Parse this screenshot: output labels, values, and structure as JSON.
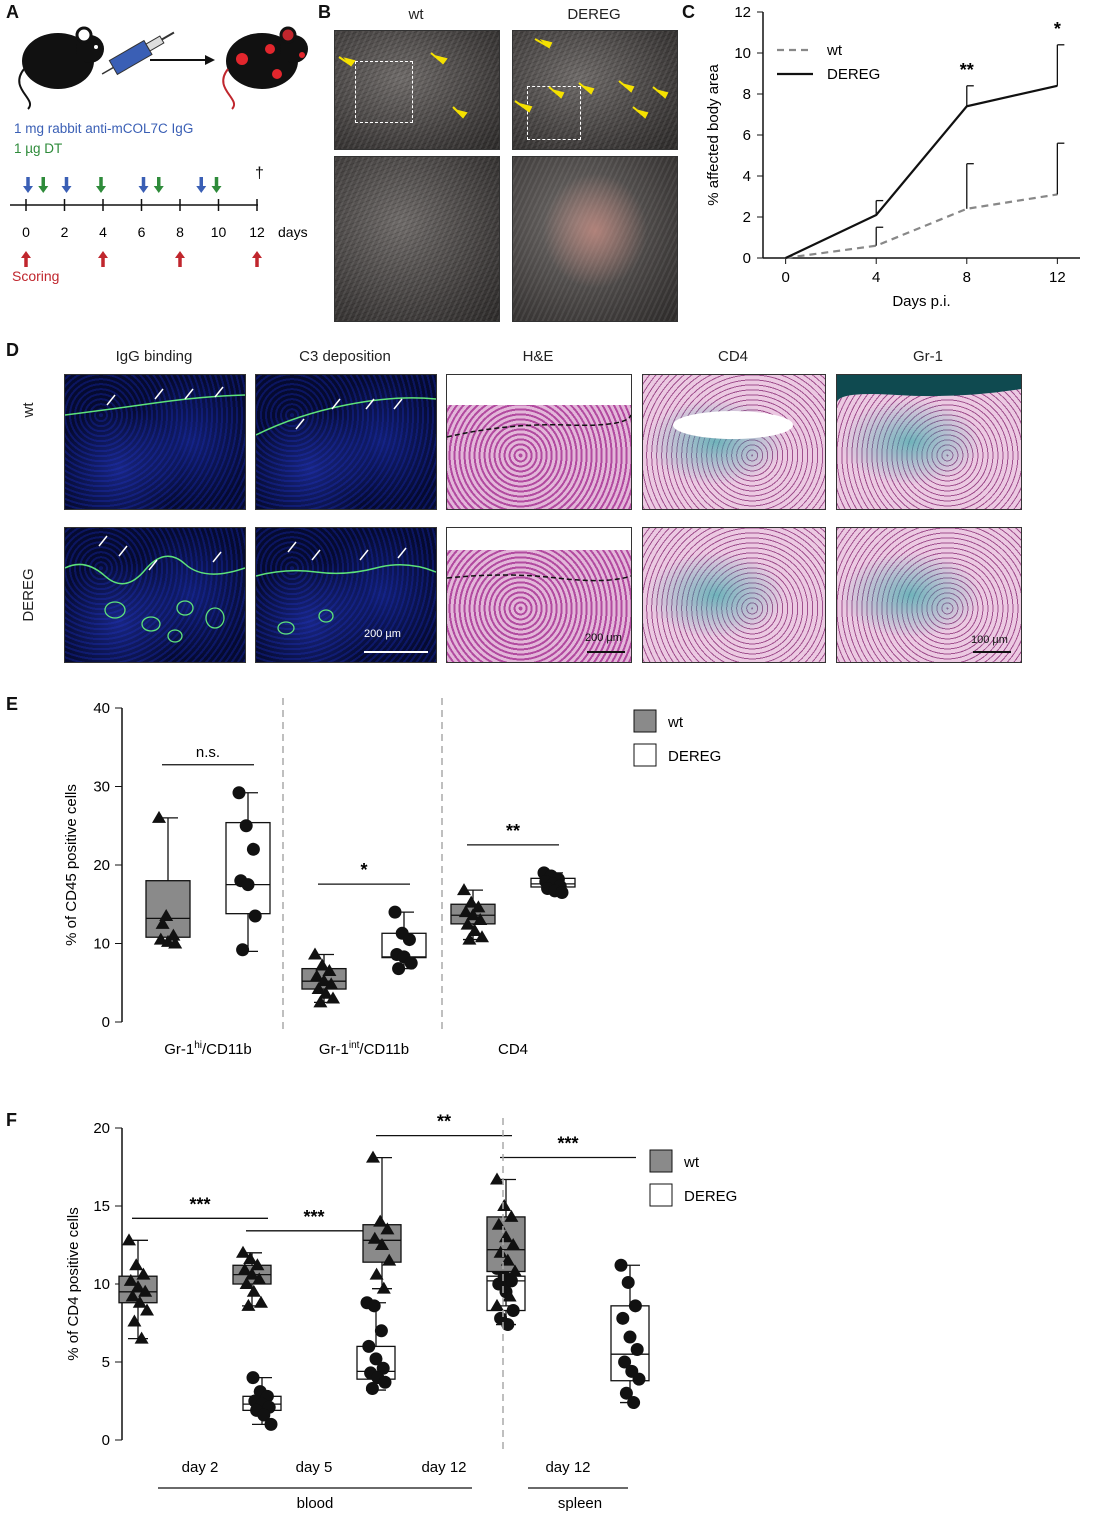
{
  "panelA": {
    "label": "A",
    "antibody_text": "1 mg rabbit anti-mCOL7C IgG",
    "dt_text": "1 µg DT",
    "dagger": "†",
    "ticks": [
      "0",
      "2",
      "4",
      "6",
      "8",
      "10",
      "12"
    ],
    "unit": "days",
    "scoring": "Scoring",
    "colors": {
      "antibody": "#3a5fb5",
      "dt": "#2e8b3a",
      "scoring": "#c0262d"
    }
  },
  "panelB": {
    "label": "B",
    "col1": "wt",
    "col2": "DEREG"
  },
  "panelD": {
    "label": "D",
    "columns": [
      "IgG binding",
      "C3 deposition",
      "H&E",
      "CD4",
      "Gr-1"
    ],
    "rows": [
      "wt",
      "DEREG"
    ],
    "scale1": "200 µm",
    "scale2": "200 µm",
    "scale3": "100 µm"
  },
  "legend": {
    "wt": "wt",
    "dereg": "DEREG"
  },
  "chart_data": [
    {
      "panel": "C",
      "type": "line",
      "xlabel": "Days p.i.",
      "ylabel": "% affected body area",
      "x": [
        0,
        4,
        8,
        12
      ],
      "xlim": [
        -1,
        13
      ],
      "ylim": [
        0,
        12
      ],
      "yticks": [
        0,
        2,
        4,
        6,
        8,
        10,
        12
      ],
      "legend_position": "top-left",
      "series": [
        {
          "name": "wt",
          "values": [
            0,
            0.6,
            2.4,
            3.1
          ],
          "err": [
            0,
            0.9,
            2.2,
            2.5
          ],
          "style": "dashed",
          "color": "#888888"
        },
        {
          "name": "DEREG",
          "values": [
            0,
            2.1,
            7.4,
            8.4
          ],
          "err": [
            0,
            0.7,
            1.0,
            2.0
          ],
          "style": "solid",
          "color": "#111111"
        }
      ],
      "annotations": [
        {
          "x": 8,
          "text": "**"
        },
        {
          "x": 12,
          "text": "*"
        }
      ]
    },
    {
      "panel": "E",
      "type": "box",
      "ylabel": "% of CD45 positive cells",
      "ylim": [
        0,
        40
      ],
      "yticks": [
        0,
        10,
        20,
        30,
        40
      ],
      "groups": [
        {
          "label": "Gr-1hi/CD11b",
          "sup": "hi",
          "base": "Gr-1",
          "rest": "/CD11b",
          "signif": "n.s.",
          "wt": {
            "min": 10,
            "q1": 10.8,
            "med": 13.2,
            "q3": 18.0,
            "max": 26,
            "points": [
              26,
              13.5,
              11,
              10.5,
              10.2,
              10.0,
              12.5
            ]
          },
          "dereg": {
            "min": 9,
            "q1": 13.8,
            "med": 17.5,
            "q3": 25.4,
            "max": 29.2,
            "points": [
              29.2,
              25,
              22,
              18,
              17.5,
              13.5,
              9.2
            ]
          }
        },
        {
          "label": "Gr-1int/CD11b",
          "sup": "int",
          "base": "Gr-1",
          "rest": "/CD11b",
          "signif": "*",
          "wt": {
            "min": 2.5,
            "q1": 4.2,
            "med": 5.2,
            "q3": 6.8,
            "max": 8.6,
            "points": [
              8.6,
              7.2,
              6.5,
              5.8,
              5.2,
              4.8,
              4.2,
              3.6,
              3.0,
              2.5
            ]
          },
          "dereg": {
            "min": 6.8,
            "q1": 8.2,
            "med": 8.3,
            "q3": 11.3,
            "max": 14.0,
            "points": [
              14.0,
              11.3,
              10.5,
              8.6,
              8.3,
              7.5,
              6.8
            ]
          }
        },
        {
          "label": "CD4",
          "sup": "",
          "base": "CD4",
          "rest": "",
          "signif": "**",
          "wt": {
            "min": 10.5,
            "q1": 12.5,
            "med": 13.6,
            "q3": 15.0,
            "max": 16.8,
            "points": [
              16.8,
              15.2,
              14.6,
              14.0,
              13.6,
              13.0,
              12.4,
              11.6,
              10.8,
              10.5
            ]
          },
          "dereg": {
            "min": 16.5,
            "q1": 17.2,
            "med": 17.6,
            "q3": 18.3,
            "max": 19.0,
            "points": [
              19.0,
              18.6,
              18.2,
              17.9,
              17.6,
              17.3,
              17.0,
              16.7,
              16.5
            ]
          }
        }
      ]
    },
    {
      "panel": "F",
      "type": "box",
      "ylabel": "% of CD4 positive cells",
      "ylim": [
        0,
        20
      ],
      "yticks": [
        0,
        5,
        10,
        15,
        20
      ],
      "groups": [
        {
          "label": "day 2",
          "signif": "***",
          "wt": {
            "min": 6.5,
            "q1": 8.8,
            "med": 9.5,
            "q3": 10.5,
            "max": 12.8,
            "points": [
              12.8,
              11.2,
              10.6,
              10.2,
              9.8,
              9.5,
              9.2,
              8.8,
              8.3,
              7.6,
              6.5
            ]
          },
          "dereg": {
            "min": 1.0,
            "q1": 1.9,
            "med": 2.3,
            "q3": 2.8,
            "max": 4.0,
            "points": [
              4.0,
              3.1,
              2.8,
              2.5,
              2.3,
              2.1,
              1.9,
              1.6,
              1.0
            ]
          }
        },
        {
          "label": "day 5",
          "signif": "***",
          "wt": {
            "min": 8.6,
            "q1": 10.0,
            "med": 10.6,
            "q3": 11.2,
            "max": 12.0,
            "points": [
              12.0,
              11.6,
              11.2,
              10.9,
              10.6,
              10.3,
              10.0,
              9.5,
              8.8,
              8.6
            ]
          },
          "dereg": {
            "min": 3.2,
            "q1": 3.9,
            "med": 4.4,
            "q3": 6.0,
            "max": 8.8,
            "points": [
              8.8,
              8.6,
              7.0,
              6.0,
              5.2,
              4.6,
              4.3,
              4.0,
              3.7,
              3.3
            ]
          }
        },
        {
          "label": "day 12",
          "signif": "**",
          "wt": {
            "min": 9.7,
            "q1": 11.4,
            "med": 12.8,
            "q3": 13.8,
            "max": 18.1,
            "points": [
              18.1,
              14.0,
              13.5,
              12.9,
              12.5,
              11.5,
              10.6,
              9.7
            ]
          },
          "dereg": {
            "min": 7.4,
            "q1": 8.3,
            "med": 10.2,
            "q3": 10.5,
            "max": 11.0,
            "points": [
              11.0,
              10.5,
              10.2,
              10.0,
              9.5,
              8.3,
              7.8,
              7.4
            ]
          }
        },
        {
          "label": "day 12",
          "signif": "***",
          "wt": {
            "min": 8.6,
            "q1": 10.8,
            "med": 12.2,
            "q3": 14.3,
            "max": 16.7,
            "points": [
              16.7,
              15.0,
              14.3,
              13.8,
              13.0,
              12.5,
              12.0,
              11.5,
              10.8,
              10.0,
              9.2,
              8.6
            ]
          },
          "dereg": {
            "min": 2.4,
            "q1": 3.8,
            "med": 5.5,
            "q3": 8.6,
            "max": 11.2,
            "points": [
              11.2,
              10.1,
              8.6,
              7.8,
              6.6,
              5.8,
              5.0,
              4.4,
              3.9,
              3.0,
              2.4
            ]
          }
        }
      ],
      "bracket_labels": [
        "blood",
        "spleen"
      ]
    }
  ]
}
